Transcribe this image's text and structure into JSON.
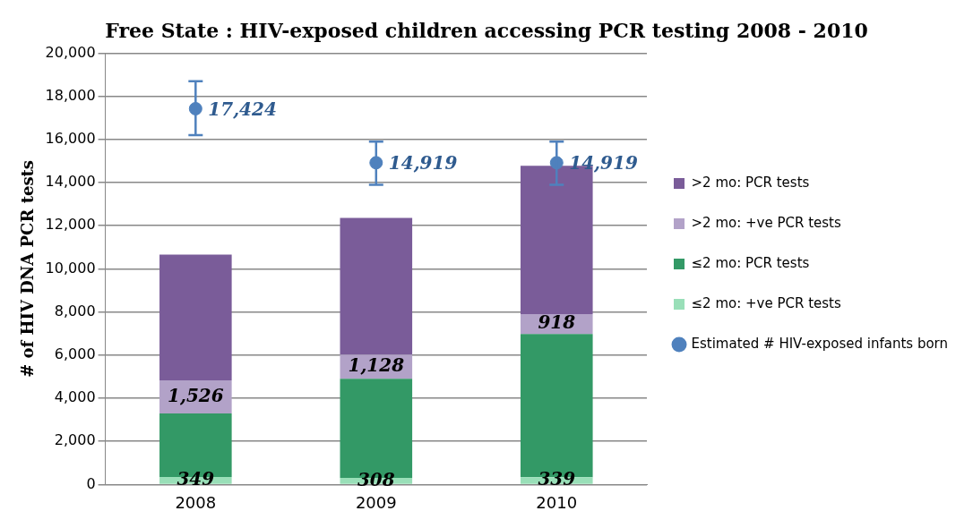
{
  "chart_data": {
    "type": "bar",
    "title": "Free State : HIV-exposed children accessing PCR testing 2008 - 2010",
    "ylabel": "# of HIV DNA PCR tests",
    "categories": [
      "2008",
      "2009",
      "2010"
    ],
    "stacked": true,
    "ylim": [
      0,
      20000
    ],
    "yticks": [
      {
        "value": 0,
        "label": "0"
      },
      {
        "value": 2000,
        "label": "2,000"
      },
      {
        "value": 4000,
        "label": "4,000"
      },
      {
        "value": 6000,
        "label": "6,000"
      },
      {
        "value": 8000,
        "label": "8,000"
      },
      {
        "value": 10000,
        "label": "10,000"
      },
      {
        "value": 12000,
        "label": "12,000"
      },
      {
        "value": 14000,
        "label": "14,000"
      },
      {
        "value": 16000,
        "label": "16,000"
      },
      {
        "value": 18000,
        "label": "18,000"
      },
      {
        "value": 20000,
        "label": "20,000"
      }
    ],
    "grid": "y",
    "legend": "right",
    "series": [
      {
        "name": "≤2 mo: +ve PCR tests",
        "color": "#99dfb8",
        "values": [
          349,
          308,
          339
        ],
        "value_labels": [
          "349",
          "308",
          "339"
        ]
      },
      {
        "name": "≤2 mo: PCR tests",
        "color": "#339966",
        "values": [
          2950,
          4590,
          6640
        ]
      },
      {
        "name": ">2 mo: +ve PCR tests",
        "color": "#b2a2c8",
        "values": [
          1526,
          1128,
          918
        ],
        "value_labels": [
          "1,526",
          "1,128",
          "918"
        ]
      },
      {
        "name": ">2 mo: PCR tests",
        "color": "#7a5c99",
        "values": [
          5830,
          6340,
          6880
        ]
      },
      {
        "name": "Estimated # HIV-exposed infants born",
        "type": "scatter",
        "marker": "circle",
        "color": "#4f81bd",
        "values": [
          17424,
          14919,
          14919
        ],
        "value_labels": [
          "17,424",
          "14,919",
          "14,919"
        ],
        "errors": [
          [
            16200,
            18700
          ],
          [
            13900,
            15900
          ],
          [
            13900,
            15900
          ]
        ]
      }
    ]
  }
}
